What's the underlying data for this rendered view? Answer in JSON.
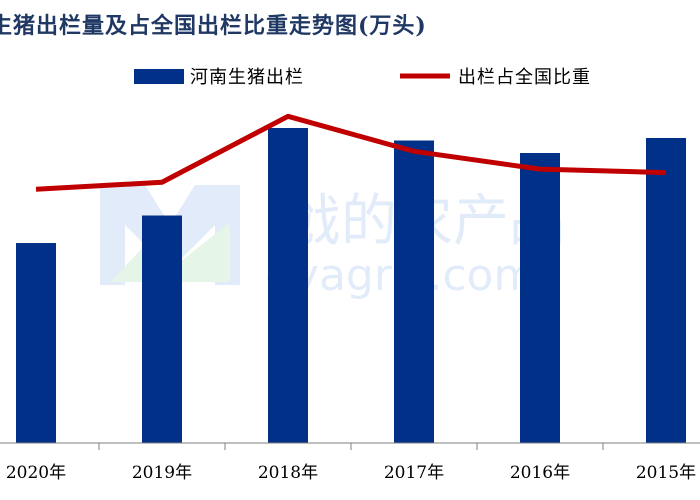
{
  "chart_data": {
    "type": "bar",
    "title": "生猪出栏量及占全国出栏比重走势图(万头)",
    "categories": [
      "2020年",
      "2019年",
      "2018年",
      "2017年",
      "2016年",
      "2015年"
    ],
    "series": [
      {
        "name": "河南生猪出栏",
        "type": "bar",
        "color": "#003087",
        "values": [
          4000,
          4550,
          6300,
          6050,
          5800,
          6100
        ]
      },
      {
        "name": "出栏占全国比重",
        "type": "line",
        "color": "#c00000",
        "values": [
          8.7,
          8.94,
          11.2,
          10.0,
          9.39,
          9.27
        ]
      }
    ],
    "ylim_bar": [
      0,
      7000
    ],
    "ylim_line": [
      0,
      12
    ],
    "grid": false,
    "legend": "top"
  },
  "colors": {
    "bar": "#003087",
    "line": "#c00000",
    "title": "#1f3864"
  }
}
